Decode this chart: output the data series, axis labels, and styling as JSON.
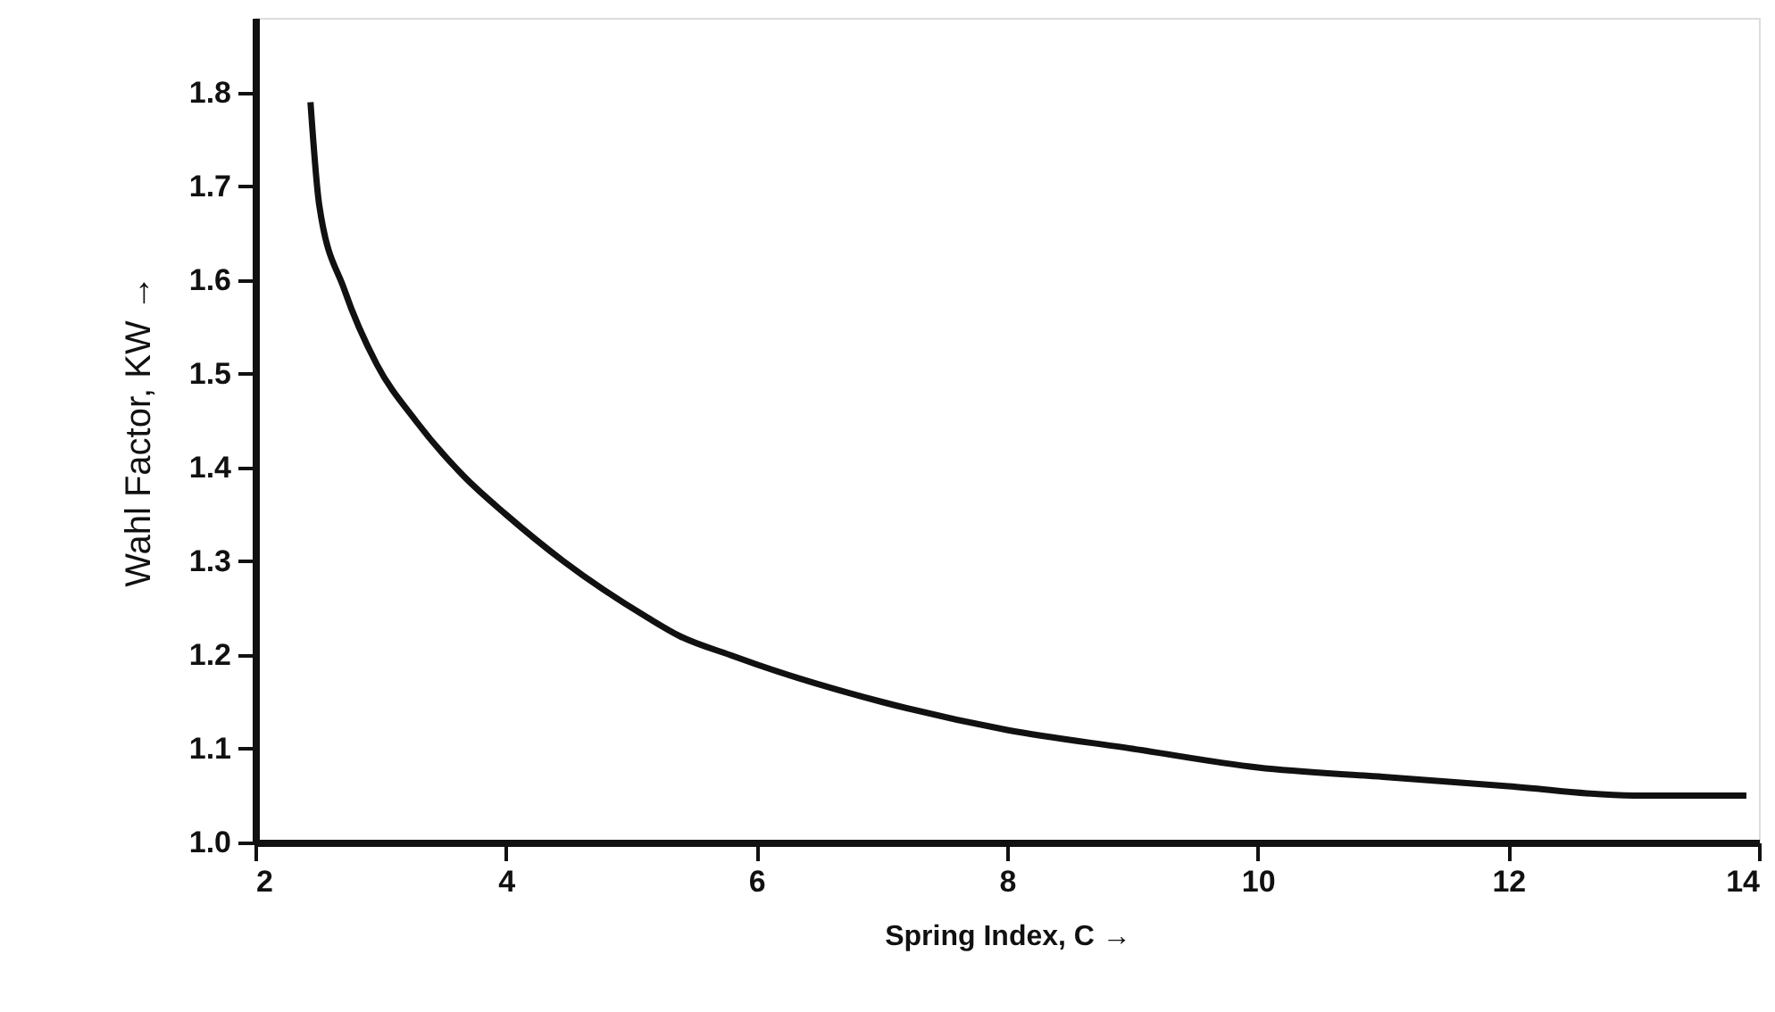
{
  "chart_data": {
    "type": "line",
    "xlabel": "Spring Index, C →",
    "ylabel": "Wahl Factor, KW →",
    "x": [
      2.44,
      2.51,
      2.71,
      2.97,
      3.28,
      3.67,
      4.0,
      4.46,
      5.13,
      5.39,
      5.79,
      6.0,
      7.0,
      8.0,
      9.0,
      10.0,
      11.0,
      12.0,
      13.0,
      13.9
    ],
    "series": [
      {
        "color": "#111111",
        "values": [
          1.79,
          1.68,
          1.59,
          1.51,
          1.45,
          1.39,
          1.35,
          1.3,
          1.24,
          1.22,
          1.2,
          1.19,
          1.15,
          1.12,
          1.1,
          1.08,
          1.07,
          1.06,
          1.05,
          1.05
        ]
      }
    ],
    "xlim": [
      2,
      14
    ],
    "xticks": [
      2,
      4,
      6,
      8,
      10,
      12,
      14
    ],
    "ylim": [
      1.0,
      1.88
    ],
    "yticks": [
      {
        "value": 1,
        "label": "1.0"
      },
      1.1,
      1.2,
      1.3,
      1.4,
      1.5,
      1.6,
      1.7,
      1.8
    ],
    "grid": false,
    "marker": "none",
    "line_style": "solid"
  }
}
